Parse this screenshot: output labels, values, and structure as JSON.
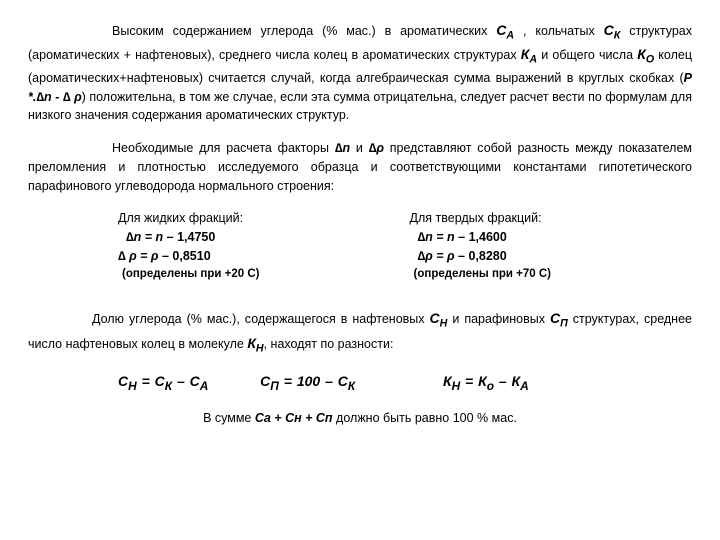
{
  "p1": {
    "t1": "Высоким содержанием углерода (% мас.) в ароматических ",
    "CA": "С",
    "CAi": "А",
    "t2": ", кольчатых ",
    "CK": "С",
    "CKi": "К",
    "t3": " структурах (ароматических + нафтеновых), среднего числа колец в ароматических структурах ",
    "KA": "К",
    "KAi": "А",
    "t4": " и общего числа ",
    "KO": "К",
    "KOi": "О",
    "t5": " колец (ароматических+нафтеновых) считается случай, когда алгебраическая сумма выражений в круглых скобках (",
    "expr": "Р *.∆n - ∆ ρ",
    "t6": ") положительна, в том же случае, если эта сумма отрицательна, следует расчет вести по формулам для низкого значения содержания ароматических структур."
  },
  "p2": {
    "t1": "Необходимые для расчета факторы ",
    "f1": "∆n",
    "t2": " и ",
    "f2": "∆ρ",
    "t3": " представляют собой разность между показателем преломления и плотностью исследуемого образца и соответствующими константами гипотетического парафинового углеводорода нормального строения:"
  },
  "liquid": {
    "hdr": "Для жидких фракций:",
    "l1a": "∆n =  n",
    "l1b": " – 1,4750",
    "l2a": "∆ ρ = ρ ",
    "l2b": " – 0,8510",
    "def": "(определены при +20 С)"
  },
  "solid": {
    "hdr": "Для твердых фракций:",
    "l1a": "∆n = n ",
    "l1b": " – 1,4600",
    "l2a": "∆ρ = ρ ",
    "l2b": " – 0,8280",
    "def": "(определены при +70 С)"
  },
  "p3": {
    "t1": "Долю углерода (% мас.), содержащегося в нафтеновых ",
    "CN": "С",
    "CNi": "Н",
    "t2": " и парафиновых ",
    "CP": "С",
    "CPi": "П",
    "t3": " структурах, среднее число нафтеновых колец в молекуле ",
    "KN": "К",
    "KNi": "Н",
    "t4": ", находят по разности:"
  },
  "formulas": {
    "f1": "С",
    "f1s": "Н",
    "eq1": " = С",
    "f1s2": "К",
    "m1": " – С",
    "f1s3": "А",
    "f2": "С",
    "f2s": "П",
    "eq2": " = 100 – С",
    "f2s2": "К",
    "f3": "К",
    "f3s": "Н",
    "eq3": "  =  К",
    "f3s2": "о",
    "m3": "  –   К",
    "f3s3": "А"
  },
  "last": {
    "t1": "В сумме ",
    "sum": "Cа + Сн + Сп",
    "t2": "  должно быть равно 100 % мас."
  }
}
